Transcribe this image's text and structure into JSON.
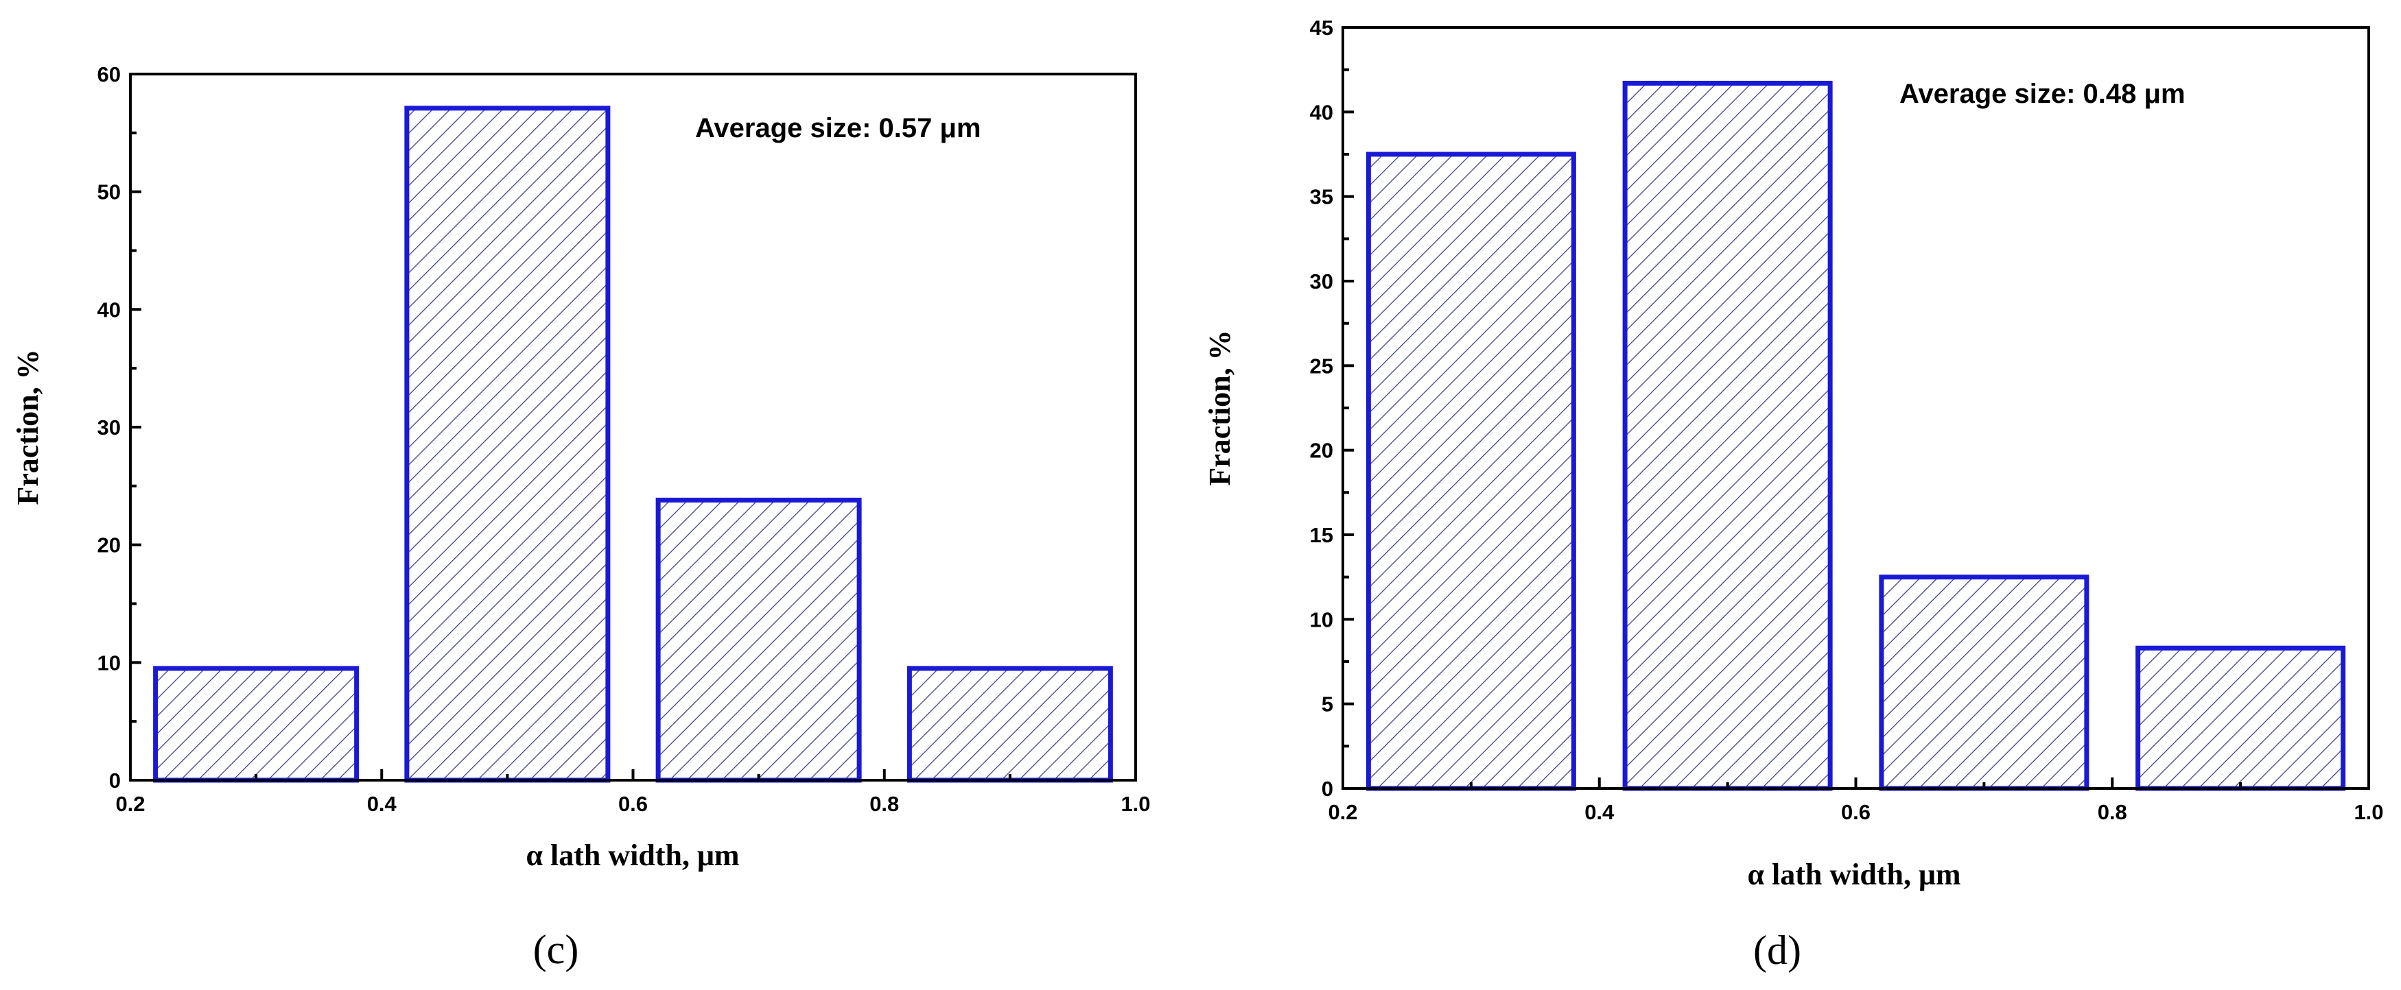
{
  "chart_data": [
    {
      "type": "bar",
      "panel_label": "(c)",
      "annotation": "Average size: 0.57 μm",
      "xlabel": "α lath width, μm",
      "ylabel": "Fraction, %",
      "xlim": [
        0.2,
        1.0
      ],
      "ylim": [
        0,
        60
      ],
      "x_ticks": [
        0.2,
        0.4,
        0.6,
        0.8,
        1.0
      ],
      "x_tick_labels": [
        "0.2",
        "0.4",
        "0.6",
        "0.8",
        "1.0"
      ],
      "y_ticks": [
        0,
        10,
        20,
        30,
        40,
        50,
        60
      ],
      "y_tick_labels": [
        "0",
        "10",
        "20",
        "30",
        "40",
        "50",
        "60"
      ],
      "bins": [
        [
          0.22,
          0.38
        ],
        [
          0.42,
          0.58
        ],
        [
          0.62,
          0.78
        ],
        [
          0.82,
          0.98
        ]
      ],
      "values": [
        9.5,
        57.1,
        23.8,
        9.5
      ],
      "bar_edge_color": "#1a1ad6",
      "hatch_color": "#3a3a8c",
      "grid": false
    },
    {
      "type": "bar",
      "panel_label": "(d)",
      "annotation": "Average size: 0.48 μm",
      "xlabel": "α lath width, μm",
      "ylabel": "Fraction, %",
      "xlim": [
        0.2,
        1.0
      ],
      "ylim": [
        0,
        45
      ],
      "x_ticks": [
        0.2,
        0.4,
        0.6,
        0.8,
        1.0
      ],
      "x_tick_labels": [
        "0.2",
        "0.4",
        "0.6",
        "0.8",
        "1.0"
      ],
      "y_ticks": [
        0,
        5,
        10,
        15,
        20,
        25,
        30,
        35,
        40,
        45
      ],
      "y_tick_labels": [
        "0",
        "5",
        "10",
        "15",
        "20",
        "25",
        "30",
        "35",
        "40",
        "45"
      ],
      "bins": [
        [
          0.22,
          0.38
        ],
        [
          0.42,
          0.58
        ],
        [
          0.62,
          0.78
        ],
        [
          0.82,
          0.98
        ]
      ],
      "values": [
        37.5,
        41.7,
        12.5,
        8.3
      ],
      "bar_edge_color": "#1a1ad6",
      "hatch_color": "#3a3a8c",
      "grid": false
    }
  ]
}
